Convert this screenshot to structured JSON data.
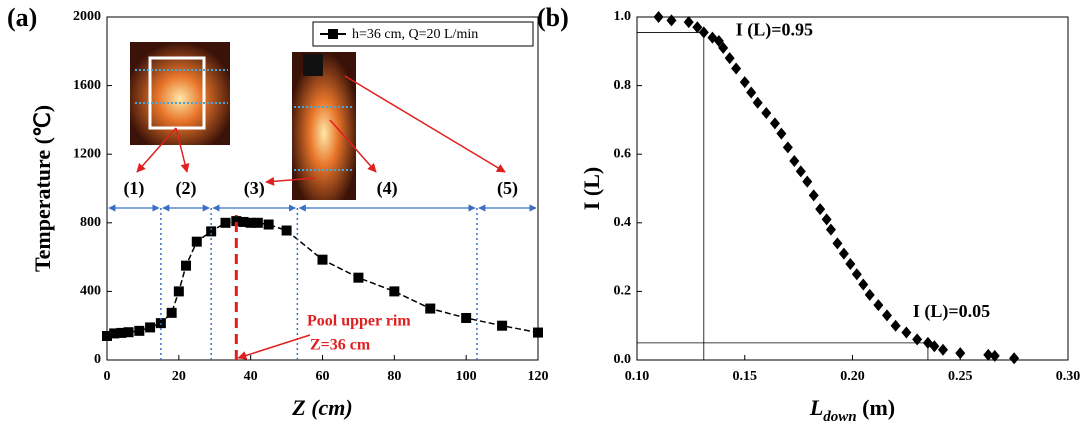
{
  "chart_data": [
    {
      "type": "line",
      "panel_label": "(a)",
      "x_label": "Z (cm)",
      "y_label": "Temperature (℃)",
      "x": [
        0,
        2,
        4,
        6,
        9,
        12,
        15,
        18,
        20,
        22,
        25,
        29,
        33,
        36,
        38,
        40,
        42,
        45,
        50,
        60,
        70,
        80,
        90,
        100,
        110,
        120
      ],
      "series": [
        {
          "name": "h=36 cm, Q=20 L/min",
          "color": "#000000",
          "values": [
            140,
            155,
            158,
            162,
            170,
            190,
            215,
            275,
            400,
            550,
            690,
            750,
            800,
            810,
            805,
            800,
            800,
            790,
            755,
            585,
            480,
            400,
            300,
            245,
            200,
            160
          ]
        }
      ],
      "xlim": [
        0,
        120
      ],
      "xticks": [
        0,
        20,
        40,
        60,
        80,
        100,
        120
      ],
      "ylim": [
        0,
        2000
      ],
      "yticks": [
        0,
        400,
        800,
        1200,
        1600,
        2000
      ],
      "legend": "top-right",
      "dividers": [
        15,
        29,
        53,
        103
      ],
      "regions": [
        "(1)",
        "(2)",
        "(3)",
        "(4)",
        "(5)"
      ],
      "rim_z": 36,
      "rim_annotation": [
        "Pool upper rim",
        "Z=36 cm"
      ]
    },
    {
      "type": "scatter",
      "panel_label": "(b)",
      "x_label": "L",
      "x_label_sub": "down",
      "x_label_unit": " (m)",
      "y_label": "I (L)",
      "x": [
        0.11,
        0.116,
        0.124,
        0.128,
        0.131,
        0.135,
        0.138,
        0.14,
        0.143,
        0.146,
        0.15,
        0.153,
        0.156,
        0.16,
        0.164,
        0.167,
        0.17,
        0.173,
        0.176,
        0.179,
        0.182,
        0.185,
        0.188,
        0.19,
        0.193,
        0.196,
        0.199,
        0.202,
        0.205,
        0.208,
        0.212,
        0.216,
        0.22,
        0.225,
        0.23,
        0.235,
        0.238,
        0.242,
        0.25,
        0.263,
        0.266,
        0.275
      ],
      "series": [
        {
          "name": null,
          "color": "#000000",
          "values": [
            1.0,
            0.99,
            0.985,
            0.97,
            0.955,
            0.94,
            0.93,
            0.91,
            0.88,
            0.85,
            0.81,
            0.78,
            0.75,
            0.72,
            0.69,
            0.66,
            0.62,
            0.58,
            0.55,
            0.52,
            0.48,
            0.44,
            0.41,
            0.38,
            0.34,
            0.31,
            0.28,
            0.25,
            0.22,
            0.19,
            0.16,
            0.13,
            0.1,
            0.08,
            0.06,
            0.05,
            0.04,
            0.03,
            0.02,
            0.015,
            0.012,
            0.005
          ]
        }
      ],
      "xlim": [
        0.1,
        0.3
      ],
      "xticks": [
        {
          "value": 0.1,
          "label": "0.10"
        },
        {
          "value": 0.15,
          "label": "0.15"
        },
        {
          "value": 0.2,
          "label": "0.20"
        },
        {
          "value": 0.25,
          "label": "0.25"
        },
        {
          "value": 0.3,
          "label": "0.30"
        }
      ],
      "ylim": [
        0,
        1
      ],
      "yticks": [
        {
          "value": 0,
          "label": "0.0"
        },
        {
          "value": 0.2,
          "label": "0.2"
        },
        {
          "value": 0.4,
          "label": "0.4"
        },
        {
          "value": 0.6,
          "label": "0.6"
        },
        {
          "value": 0.8,
          "label": "0.8"
        },
        {
          "value": 1,
          "label": "1.0"
        }
      ],
      "reference_points": [
        {
          "x": 0.131,
          "y": 0.955,
          "label": "I (L)=0.95"
        },
        {
          "x": 0.235,
          "y": 0.05,
          "label": "I (L)=0.05"
        }
      ]
    }
  ]
}
